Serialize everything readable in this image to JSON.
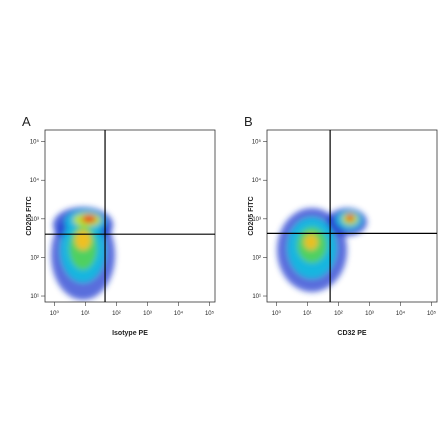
{
  "chart_data": [
    {
      "type": "scatter",
      "panel": "A",
      "x_label": "Isotype PE",
      "y_label": "CD205 FITC",
      "log_x": true,
      "log_y": true,
      "xlim": [
        0.5,
        150000
      ],
      "ylim": [
        7,
        200000
      ],
      "xticks": [
        {
          "value": 1,
          "label": "10⁰"
        },
        {
          "value": 10,
          "label": "10¹"
        },
        {
          "value": 100,
          "label": "10²"
        },
        {
          "value": 1000,
          "label": "10³"
        },
        {
          "value": 10000,
          "label": "10⁴"
        },
        {
          "value": 100000,
          "label": "10⁵"
        }
      ],
      "yticks": [
        {
          "value": 10,
          "label": "10¹"
        },
        {
          "value": 100,
          "label": "10²"
        },
        {
          "value": 1000,
          "label": "10³"
        },
        {
          "value": 10000,
          "label": "10⁴"
        },
        {
          "value": 100000,
          "label": "10⁵"
        }
      ],
      "quadrant_x": 43,
      "quadrant_y": 400
    },
    {
      "type": "scatter",
      "panel": "B",
      "x_label": "CD32 PE",
      "y_label": "CD205 FITC",
      "log_x": true,
      "log_y": true,
      "xlim": [
        0.5,
        150000
      ],
      "ylim": [
        7,
        200000
      ],
      "xticks": [
        {
          "value": 1,
          "label": "10⁰"
        },
        {
          "value": 10,
          "label": "10¹"
        },
        {
          "value": 100,
          "label": "10²"
        },
        {
          "value": 1000,
          "label": "10³"
        },
        {
          "value": 10000,
          "label": "10⁴"
        },
        {
          "value": 100000,
          "label": "10⁵"
        }
      ],
      "yticks": [
        {
          "value": 10,
          "label": "10¹"
        },
        {
          "value": 100,
          "label": "10²"
        },
        {
          "value": 1000,
          "label": "10³"
        },
        {
          "value": 10000,
          "label": "10⁴"
        },
        {
          "value": 100000,
          "label": "10⁵"
        }
      ],
      "quadrant_x": 54,
      "quadrant_y": 420
    }
  ]
}
